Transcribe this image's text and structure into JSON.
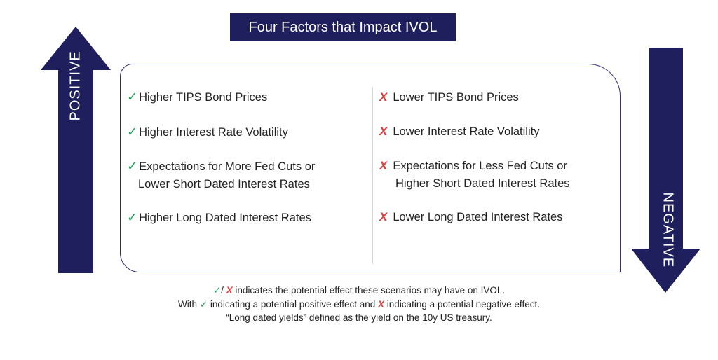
{
  "title": "Four Factors that Impact IVOL",
  "arrows": {
    "positive_label": "POSITIVE",
    "negative_label": "NEGATIVE",
    "color": "#1f1f5e"
  },
  "positive_items": [
    {
      "mark": "✓",
      "lines": [
        "Higher TIPS Bond Prices"
      ]
    },
    {
      "mark": "✓",
      "lines": [
        "Higher Interest Rate Volatility"
      ]
    },
    {
      "mark": "✓",
      "lines": [
        "Expectations for More Fed Cuts or",
        "Lower Short Dated Interest Rates"
      ]
    },
    {
      "mark": "✓",
      "lines": [
        "Higher Long Dated Interest Rates"
      ]
    }
  ],
  "negative_items": [
    {
      "mark": "X",
      "lines": [
        "Lower TIPS Bond Prices"
      ]
    },
    {
      "mark": "X",
      "lines": [
        "Lower Interest Rate Volatility"
      ]
    },
    {
      "mark": "X",
      "lines": [
        "Expectations for Less Fed Cuts or",
        "Higher Short Dated Interest Rates"
      ]
    },
    {
      "mark": "X",
      "lines": [
        "Lower Long Dated Interest Rates"
      ]
    }
  ],
  "colors": {
    "check": "#27a35a",
    "cross": "#e23b3b",
    "box_border": "#2d2d78"
  },
  "footnotes": {
    "line1": {
      "check": "✓",
      "sep": "/ ",
      "x": "X",
      "text": " indicates the potential effect these scenarios may have on IVOL."
    },
    "line2": {
      "a": "With ",
      "check": "✓",
      "b": " indicating a potential positive effect and ",
      "x": "X",
      "c": " indicating a potential negative effect."
    },
    "line3": "“Long dated yields” defined as the yield on the 10y US treasury."
  }
}
